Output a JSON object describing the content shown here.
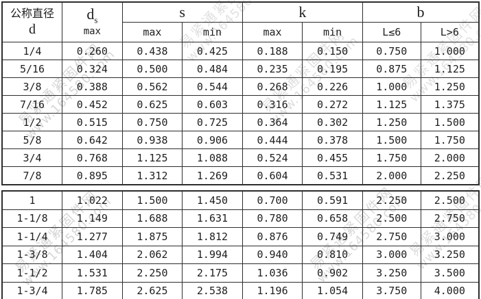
{
  "watermark": {
    "line1": "易紧通紧固件网",
    "line2": "www.164580.com",
    "color": "#b5b5b5"
  },
  "header": {
    "col_d_line1": "公称直径",
    "col_d_line2": "d",
    "col_ds_main": "d",
    "col_ds_sub": "s",
    "col_ds_unit": "max",
    "col_s": "s",
    "col_k": "k",
    "col_b": "b",
    "s_max": "max",
    "s_min": "min",
    "k_max": "max",
    "k_min": "min",
    "b_le6": "L≤6",
    "b_gt6": "L>6"
  },
  "table": {
    "columns": [
      "d",
      "ds max",
      "s max",
      "s min",
      "k max",
      "k min",
      "b L≤6",
      "b L>6"
    ],
    "sections": [
      {
        "rows": [
          [
            "1/4",
            "0.260",
            "0.438",
            "0.425",
            "0.188",
            "0.150",
            "0.750",
            "1.000"
          ],
          [
            "5/16",
            "0.324",
            "0.500",
            "0.484",
            "0.235",
            "0.195",
            "0.875",
            "1.125"
          ],
          [
            "3/8",
            "0.388",
            "0.562",
            "0.544",
            "0.268",
            "0.226",
            "1.000",
            "1.250"
          ],
          [
            "7/16",
            "0.452",
            "0.625",
            "0.603",
            "0.316",
            "0.272",
            "1.125",
            "1.375"
          ],
          [
            "1/2",
            "0.515",
            "0.750",
            "0.725",
            "0.364",
            "0.302",
            "1.250",
            "1.500"
          ],
          [
            "5/8",
            "0.642",
            "0.938",
            "0.906",
            "0.444",
            "0.378",
            "1.500",
            "1.750"
          ],
          [
            "3/4",
            "0.768",
            "1.125",
            "1.088",
            "0.524",
            "0.455",
            "1.750",
            "2.000"
          ],
          [
            "7/8",
            "0.895",
            "1.312",
            "1.269",
            "0.604",
            "0.531",
            "2.000",
            "2.250"
          ]
        ]
      },
      {
        "rows": [
          [
            "1",
            "1.022",
            "1.500",
            "1.450",
            "0.700",
            "0.591",
            "2.250",
            "2.500"
          ],
          [
            "1-1/8",
            "1.149",
            "1.688",
            "1.631",
            "0.780",
            "0.658",
            "2.500",
            "2.750"
          ],
          [
            "1-1/4",
            "1.277",
            "1.875",
            "1.812",
            "0.876",
            "0.749",
            "2.750",
            "3.000"
          ],
          [
            "1-3/8",
            "1.404",
            "2.062",
            "1.994",
            "0.940",
            "0.810",
            "3.000",
            "3.250"
          ],
          [
            "1-1/2",
            "1.531",
            "2.250",
            "2.175",
            "1.036",
            "0.902",
            "3.250",
            "3.500"
          ],
          [
            "1-3/4",
            "1.785",
            "2.625",
            "2.538",
            "1.196",
            "1.054",
            "3.750",
            "4.000"
          ]
        ]
      }
    ]
  }
}
